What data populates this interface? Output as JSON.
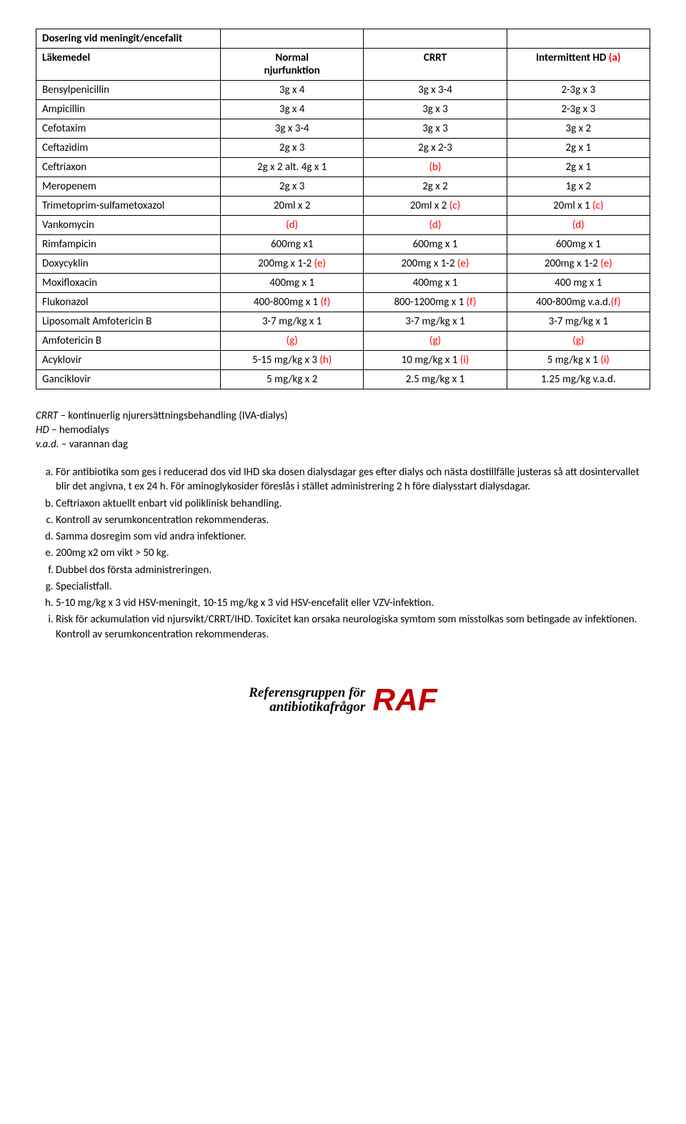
{
  "table": {
    "title_cell": "Dosering vid meningit/encefalit",
    "header": {
      "c1": "Läkemedel",
      "c2_l1": "Normal",
      "c2_l2": "njurfunktion",
      "c3": "CRRT",
      "c4": "Intermittent HD",
      "c4_note": "(a)"
    },
    "rows": [
      {
        "name": "Bensylpenicillin",
        "c2": "3g x 4",
        "c3": "3g x 3-4",
        "c4": "2-3g x 3",
        "r2": false,
        "r3": false,
        "r4": false
      },
      {
        "name": "Ampicillin",
        "c2": "3g x 4",
        "c3": "3g x 3",
        "c4": "2-3g x 3",
        "r2": false,
        "r3": false,
        "r4": false
      },
      {
        "name": "Cefotaxim",
        "c2": "3g x 3-4",
        "c3": "3g x 3",
        "c4": "3g x 2",
        "r2": false,
        "r3": false,
        "r4": false
      },
      {
        "name": "Ceftazidim",
        "c2": "2g x 3",
        "c3": "2g x 2-3",
        "c4": "2g x 1",
        "r2": false,
        "r3": false,
        "r4": false
      },
      {
        "name": "Ceftriaxon",
        "c2": "2g x 2 alt. 4g x 1",
        "c3": "(b)",
        "c4": "2g x 1",
        "r2": false,
        "r3": true,
        "r4": false
      },
      {
        "name": "Meropenem",
        "c2": "2g x 3",
        "c3": "2g x 2",
        "c4": "1g x 2",
        "r2": false,
        "r3": false,
        "r4": false
      },
      {
        "name": "Trimetoprim-sulfametoxazol",
        "c2": "20ml x 2",
        "c3": "20ml x 2 (c)",
        "c4": "20ml x 1 (c)",
        "r2": false,
        "r3": true,
        "r4": true
      },
      {
        "name": "Vankomycin",
        "c2": "(d)",
        "c3": "(d)",
        "c4": "(d)",
        "r2": true,
        "r3": true,
        "r4": true
      },
      {
        "name": "Rimfampicin",
        "c2": "600mg x1",
        "c3": "600mg x 1",
        "c4": "600mg x 1",
        "r2": false,
        "r3": false,
        "r4": false
      },
      {
        "name": "Doxycyklin",
        "c2": "200mg x 1-2 (e)",
        "c3": "200mg x 1-2 (e)",
        "c4": "200mg x 1-2 (e)",
        "r2": true,
        "r3": true,
        "r4": true
      },
      {
        "name": "Moxifloxacin",
        "c2": "400mg x 1",
        "c3": "400mg x 1",
        "c4": "400 mg x 1",
        "r2": false,
        "r3": false,
        "r4": false
      },
      {
        "name": "Flukonazol",
        "c2": "400-800mg x 1 (f)",
        "c3": "800-1200mg x 1 (f)",
        "c4": "400-800mg v.a.d.(f)",
        "r2": true,
        "r3": true,
        "r4": true
      },
      {
        "name": "Liposomalt Amfotericin B",
        "c2": "3-7 mg/kg x 1",
        "c3": "3-7 mg/kg x 1",
        "c4": "3-7 mg/kg x 1",
        "r2": false,
        "r3": false,
        "r4": false
      },
      {
        "name": "Amfotericin B",
        "c2": "(g)",
        "c3": "(g)",
        "c4": "(g)",
        "r2": true,
        "r3": true,
        "r4": true
      },
      {
        "name": "Acyklovir",
        "c2": "5-15 mg/kg x 3 (h)",
        "c3": "10 mg/kg x 1 (i)",
        "c4": "5 mg/kg x 1 (i)",
        "r2": true,
        "r3": true,
        "r4": true
      },
      {
        "name": "Ganciklovir",
        "c2": "5 mg/kg x 2",
        "c3": "2.5 mg/kg x 1",
        "c4": "1.25 mg/kg v.a.d.",
        "r2": false,
        "r3": false,
        "r4": false
      }
    ]
  },
  "defs": {
    "l1_a": "CRRT",
    "l1_b": " – kontinuerlig njurersättningsbehandling (IVA-dialys)",
    "l2_a": "HD",
    "l2_b": " – hemodialys",
    "l3_a": "v.a.d.",
    "l3_b": " – varannan dag"
  },
  "notes": [
    "För antibiotika som ges i reducerad dos vid IHD ska dosen dialysdagar ges efter dialys och nästa dostillfälle justeras så att dosintervallet blir det angivna, t ex 24 h. För aminoglykosider föreslås i stället administrering 2 h före dialysstart dialysdagar.",
    "Ceftriaxon aktuellt enbart vid poliklinisk behandling.",
    "Kontroll av serumkoncentration rekommenderas.",
    "Samma dosregim som vid andra infektioner.",
    "200mg x2 om vikt > 50 kg.",
    "Dubbel dos första administreringen.",
    "Specialistfall.",
    "5-10 mg/kg x 3 vid HSV-meningit, 10-15 mg/kg x 3 vid HSV-encefalit eller VZV-infektion.",
    "Risk för ackumulation vid njursvikt/CRRT/IHD. Toxicitet kan orsaka neurologiska symtom som misstolkas som betingade av infektionen. Kontroll av serumkoncentration rekommenderas."
  ],
  "logo": {
    "line1": "Referensgruppen för",
    "line2": "antibiotikafrågor",
    "mark": "RAF"
  }
}
